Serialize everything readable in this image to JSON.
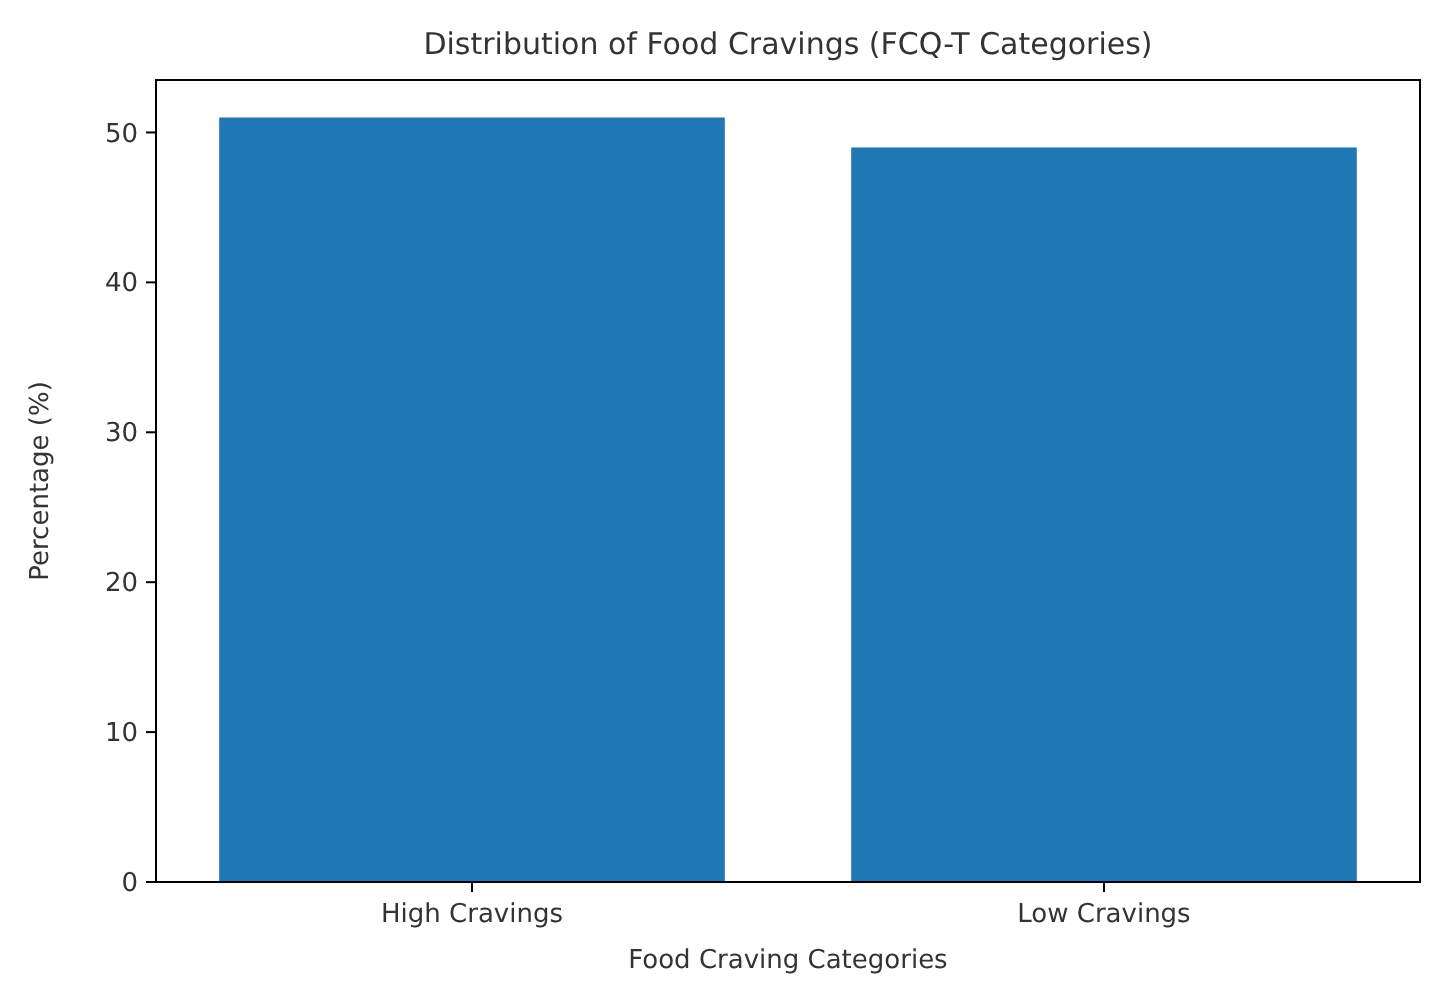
{
  "chart_data": {
    "type": "bar",
    "title": "Distribution of Food Cravings (FCQ-T Categories)",
    "xlabel": "Food Craving Categories",
    "ylabel": "Percentage (%)",
    "categories": [
      "High Cravings",
      "Low Cravings"
    ],
    "values": [
      51,
      49
    ],
    "color": "#1f77b4",
    "ylim": [
      0,
      53.5
    ],
    "yticks": [
      0,
      10,
      20,
      30,
      40,
      50
    ],
    "grid": false
  }
}
